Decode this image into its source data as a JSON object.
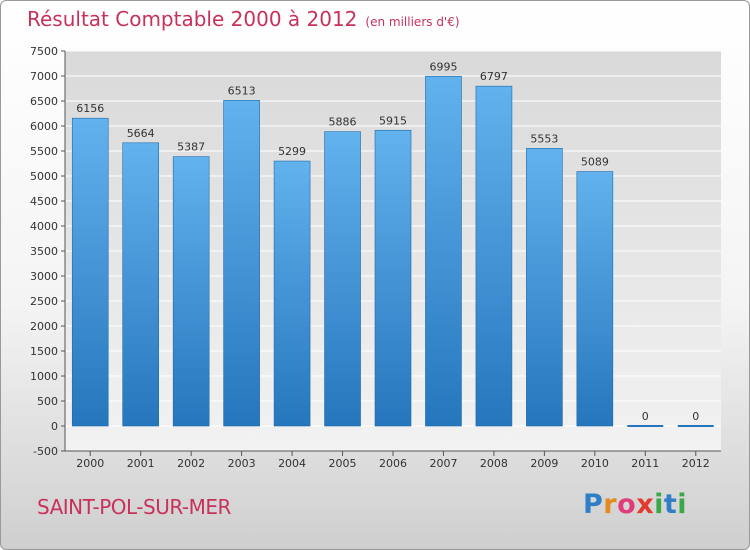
{
  "title": "Résultat Comptable 2000 à 2012",
  "unit": "(en milliers d'€)",
  "city": "SAINT-POL-SUR-MER",
  "logo": {
    "text": "Proxiti",
    "letters": [
      "P",
      "r",
      "o",
      "x",
      "i",
      "t",
      "i"
    ],
    "colors": [
      "#2f7fc8",
      "#e58a1f",
      "#e23b7a",
      "#e23b2e",
      "#3aa84a",
      "#2f7fc8",
      "#3aa84a"
    ]
  },
  "colors": {
    "bar_top": "#62b2ee",
    "bar_bottom": "#2676bd",
    "title": "#c8325a"
  },
  "chart_data": {
    "type": "bar",
    "title": "Résultat Comptable 2000 à 2012",
    "ylabel": "(en milliers d'€)",
    "xlabel": "",
    "categories": [
      "2000",
      "2001",
      "2002",
      "2003",
      "2004",
      "2005",
      "2006",
      "2007",
      "2008",
      "2009",
      "2010",
      "2011",
      "2012"
    ],
    "values": [
      6156,
      5664,
      5387,
      6513,
      5299,
      5886,
      5915,
      6995,
      6797,
      5553,
      5089,
      0,
      0
    ],
    "labels": [
      "6156",
      "5664",
      "5387",
      "6513",
      "5299",
      "5886",
      "5915",
      "6995",
      "6797",
      "5553",
      "5089",
      "0",
      "0"
    ],
    "ylim": [
      -500,
      7500
    ],
    "yticks": [
      -500,
      0,
      500,
      1000,
      1500,
      2000,
      2500,
      3000,
      3500,
      4000,
      4500,
      5000,
      5500,
      6000,
      6500,
      7000,
      7500
    ],
    "grid": true
  }
}
